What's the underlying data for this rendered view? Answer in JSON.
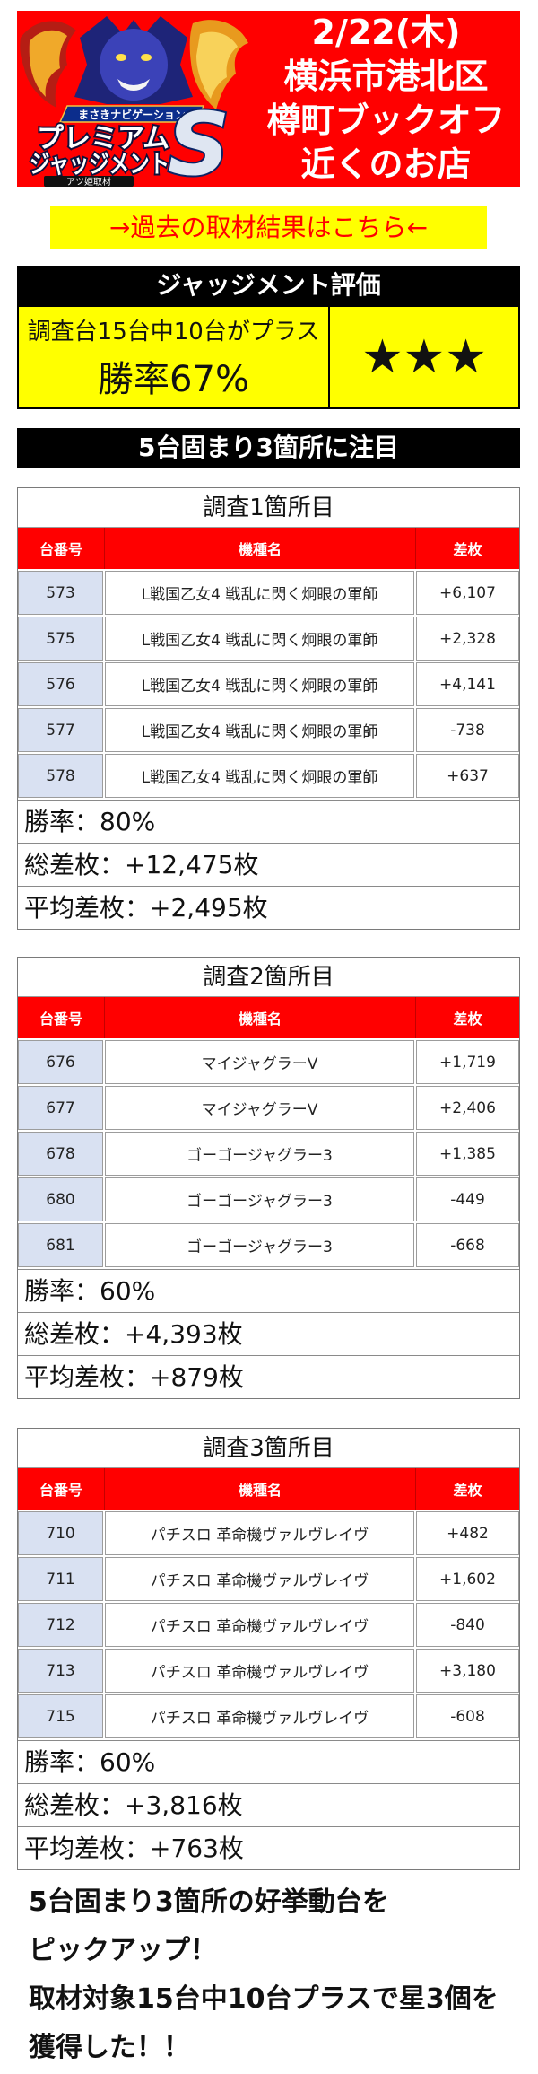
{
  "colors": {
    "header_red": "#ff0000",
    "table_header_red": "#ff0000",
    "highlight_yellow": "#ffff00",
    "link_text_red": "#ff0000",
    "number_column_bg": "#d9e1f2",
    "heading_black": "#000000"
  },
  "logo": {
    "subtitle": "まさきナビゲーション",
    "line1": "プレミアム",
    "line2": "ジャッジメント",
    "letter": "S",
    "badge": "アツ姫取材"
  },
  "header": {
    "date": "2/22(木)",
    "area": "横浜市港北区",
    "store": "樽町ブックオフ",
    "nearby": "近くのお店"
  },
  "past_results_link": "→過去の取材結果はこちら←",
  "judgement": {
    "heading": "ジャッジメント評価",
    "summary": "調査台15台中10台がプラス",
    "win_rate": "勝率67%",
    "stars": "★★★"
  },
  "focus_heading": "5台固まり3箇所に注目",
  "columns": [
    "台番号",
    "機種名",
    "差枚"
  ],
  "sections": [
    {
      "title": "調査1箇所目",
      "rows": [
        {
          "number": 573,
          "machine": "L戦国乙女4 戦乱に閃く炯眼の軍師",
          "diff": "+6,107"
        },
        {
          "number": 575,
          "machine": "L戦国乙女4 戦乱に閃く炯眼の軍師",
          "diff": "+2,328"
        },
        {
          "number": 576,
          "machine": "L戦国乙女4 戦乱に閃く炯眼の軍師",
          "diff": "+4,141"
        },
        {
          "number": 577,
          "machine": "L戦国乙女4 戦乱に閃く炯眼の軍師",
          "diff": "-738"
        },
        {
          "number": 578,
          "machine": "L戦国乙女4 戦乱に閃く炯眼の軍師",
          "diff": "+637"
        }
      ],
      "stats": {
        "win_rate": {
          "label": "勝率：",
          "value": "80%"
        },
        "total": {
          "label": "総差枚：",
          "value": "+12,475枚"
        },
        "average": {
          "label": "平均差枚：",
          "value": "+2,495枚"
        }
      }
    },
    {
      "title": "調査2箇所目",
      "rows": [
        {
          "number": 676,
          "machine": "マイジャグラーV",
          "diff": "+1,719"
        },
        {
          "number": 677,
          "machine": "マイジャグラーV",
          "diff": "+2,406"
        },
        {
          "number": 678,
          "machine": "ゴーゴージャグラー3",
          "diff": "+1,385"
        },
        {
          "number": 680,
          "machine": "ゴーゴージャグラー3",
          "diff": "-449"
        },
        {
          "number": 681,
          "machine": "ゴーゴージャグラー3",
          "diff": "-668"
        }
      ],
      "stats": {
        "win_rate": {
          "label": "勝率：",
          "value": "60%"
        },
        "total": {
          "label": "総差枚：",
          "value": "+4,393枚"
        },
        "average": {
          "label": "平均差枚：",
          "value": "+879枚"
        }
      }
    },
    {
      "title": "調査3箇所目",
      "rows": [
        {
          "number": 710,
          "machine": "パチスロ 革命機ヴァルヴレイヴ",
          "diff": "+482"
        },
        {
          "number": 711,
          "machine": "パチスロ 革命機ヴァルヴレイヴ",
          "diff": "+1,602"
        },
        {
          "number": 712,
          "machine": "パチスロ 革命機ヴァルヴレイヴ",
          "diff": "-840"
        },
        {
          "number": 713,
          "machine": "パチスロ 革命機ヴァルヴレイヴ",
          "diff": "+3,180"
        },
        {
          "number": 715,
          "machine": "パチスロ 革命機ヴァルヴレイヴ",
          "diff": "-608"
        }
      ],
      "stats": {
        "win_rate": {
          "label": "勝率：",
          "value": "60%"
        },
        "total": {
          "label": "総差枚：",
          "value": "+3,816枚"
        },
        "average": {
          "label": "平均差枚：",
          "value": "+763枚"
        }
      }
    }
  ],
  "summary": {
    "lines": [
      "5台固まり3箇所の好挙動台を",
      "ピックアップ！",
      "取材対象15台中10台プラスで星3個を",
      "獲得した！！"
    ]
  }
}
